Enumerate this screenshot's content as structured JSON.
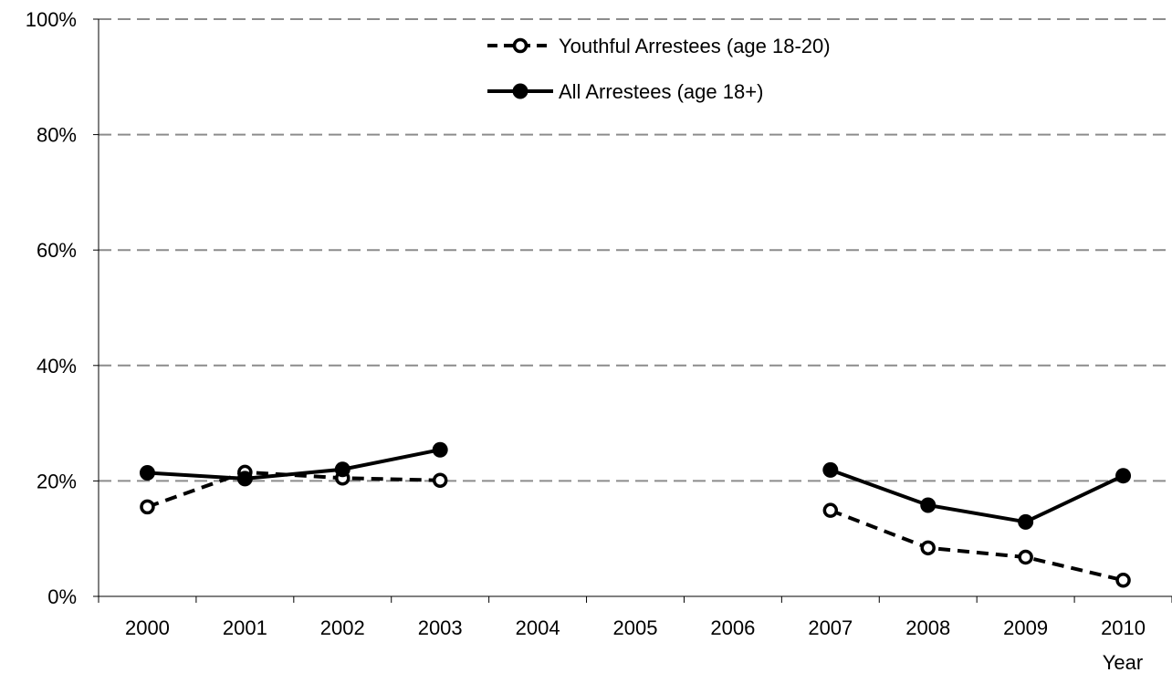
{
  "chart_data": {
    "type": "line",
    "title": "",
    "xlabel": "Year",
    "ylabel": "",
    "categories": [
      "2000",
      "2001",
      "2002",
      "2003",
      "2004",
      "2005",
      "2006",
      "2007",
      "2008",
      "2009",
      "2010"
    ],
    "ylim": [
      0,
      100
    ],
    "yticks": [
      "0%",
      "20%",
      "40%",
      "60%",
      "80%",
      "100%"
    ],
    "ytick_values": [
      0,
      20,
      40,
      60,
      80,
      100
    ],
    "grid": "horizontal dashed",
    "legend_position": "top-center",
    "series": [
      {
        "name": "Youthful Arrestees (age 18-20)",
        "style": "dashed-open-marker",
        "color": "#000000",
        "values": [
          15.5,
          21.5,
          20.5,
          20.1,
          null,
          null,
          null,
          14.9,
          8.4,
          6.8,
          2.8
        ]
      },
      {
        "name": "All Arrestees (age 18+)",
        "style": "solid-filled-marker",
        "color": "#000000",
        "values": [
          21.4,
          20.4,
          22.0,
          25.4,
          null,
          null,
          null,
          21.9,
          15.8,
          12.9,
          20.9
        ]
      }
    ]
  }
}
